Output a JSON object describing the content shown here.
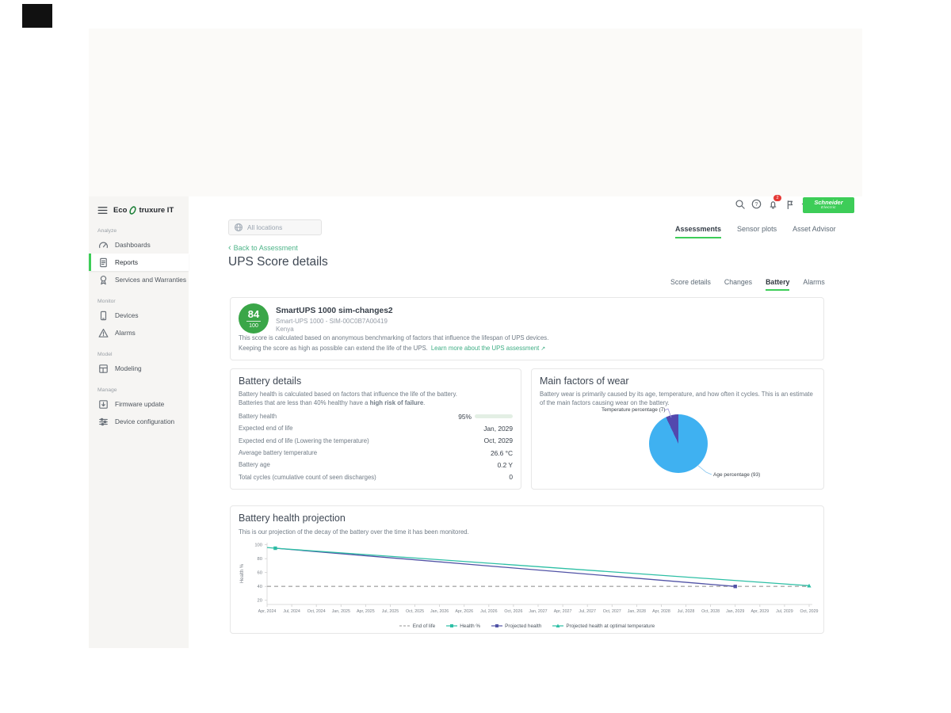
{
  "topbar": {
    "search_placeholder": "All locations",
    "notification_badge": "2",
    "icons": [
      {
        "name": "search-icon"
      },
      {
        "name": "help-icon"
      },
      {
        "name": "notifications-icon",
        "badge": true
      },
      {
        "name": "feedback-icon"
      },
      {
        "name": "settings-icon"
      }
    ],
    "brand": {
      "line1": "Schneider",
      "line2": "Electric",
      "color": "#3dcd58"
    }
  },
  "sidebar": {
    "logo_prefix": "Eco",
    "logo_suffix": "truxure IT",
    "sections": [
      {
        "label": "Analyze",
        "items": [
          {
            "label": "Dashboards",
            "icon": "dashboards-icon",
            "active": false
          },
          {
            "label": "Reports",
            "icon": "reports-icon",
            "active": true
          },
          {
            "label": "Services and Warranties",
            "icon": "services-warranties-icon",
            "active": false
          }
        ]
      },
      {
        "label": "Monitor",
        "items": [
          {
            "label": "Devices",
            "icon": "devices-icon",
            "active": false
          },
          {
            "label": "Alarms",
            "icon": "alarms-icon",
            "active": false
          }
        ]
      },
      {
        "label": "Model",
        "items": [
          {
            "label": "Modeling",
            "icon": "modeling-icon",
            "active": false
          }
        ]
      },
      {
        "label": "Manage",
        "items": [
          {
            "label": "Firmware update",
            "icon": "firmware-update-icon",
            "active": false
          },
          {
            "label": "Device configuration",
            "icon": "device-configuration-icon",
            "active": false
          }
        ]
      }
    ]
  },
  "primary_tabs": [
    {
      "label": "Assessments",
      "active": true
    },
    {
      "label": "Sensor plots",
      "active": false
    },
    {
      "label": "Asset Advisor",
      "active": false
    }
  ],
  "back_link_label": "Back to Assessment",
  "page_title": "UPS Score details",
  "secondary_tabs": [
    {
      "label": "Score details",
      "active": false
    },
    {
      "label": "Changes",
      "active": false
    },
    {
      "label": "Battery",
      "active": true
    },
    {
      "label": "Alarms",
      "active": false
    }
  ],
  "score_card": {
    "score": "84",
    "score_max": "100",
    "score_color": "#3aa648",
    "device_name": "SmartUPS 1000 sim-changes2",
    "device_model": "Smart-UPS 1000 - SIM-00C0B7A00419",
    "location": "Kenya",
    "description_line1": "This score is calculated based on anonymous benchmarking of factors that influence the lifespan of UPS devices.",
    "description_line2": "Keeping the score as high as possible can extend the life of the UPS.",
    "learn_more_label": "Learn more about the UPS assessment"
  },
  "battery_details": {
    "title": "Battery details",
    "description_line1": "Battery health is calculated based on factors that influence the life of the battery.",
    "description_line2_prefix": "Batteries that are less than 40% healthy have a ",
    "description_line2_bold": "high risk of failure",
    "description_line2_suffix": ".",
    "rows": [
      {
        "label": "Battery health",
        "value": "95%",
        "bar_percent": 95,
        "bar_color": "#1c7c3c"
      },
      {
        "label": "Expected end of life",
        "value": "Jan, 2029"
      },
      {
        "label": "Expected end of life (Lowering the temperature)",
        "value": "Oct, 2029"
      },
      {
        "label": "Average battery temperature",
        "value": "26.6 °C"
      },
      {
        "label": "Battery age",
        "value": "0.2 Y"
      },
      {
        "label": "Total cycles (cumulative count of seen discharges)",
        "value": "0"
      }
    ]
  },
  "wear_card": {
    "title": "Main factors of wear",
    "description": "Battery wear is primarily caused by its age, temperature, and how often it cycles. This is an estimate of the main factors causing wear on the battery.",
    "chart_data": {
      "type": "pie",
      "slices": [
        {
          "label": "Temperature percentage (7)",
          "value": 7,
          "color": "#5348ae"
        },
        {
          "label": "Age percentage (93)",
          "value": 93,
          "color": "#3fb1f1"
        }
      ]
    }
  },
  "projection_card": {
    "title": "Battery health projection",
    "description": "This is our projection of the decay of the battery over the time it has been monitored.",
    "chart_data": {
      "type": "line",
      "ylabel": "Health %",
      "yticks": [
        20,
        40,
        60,
        80,
        100
      ],
      "ylim": [
        14,
        103
      ],
      "x_unit": "months_since_Apr_2024",
      "xtick_step_months": 3,
      "xtick_labels": [
        "Apr, 2024",
        "Jul, 2024",
        "Oct, 2024",
        "Jan, 2025",
        "Apr, 2025",
        "Jul, 2025",
        "Oct, 2025",
        "Jan, 2026",
        "Apr, 2026",
        "Jul, 2026",
        "Oct, 2026",
        "Jan, 2027",
        "Apr, 2027",
        "Jul, 2027",
        "Oct, 2027",
        "Jan, 2028",
        "Apr, 2028",
        "Jul, 2028",
        "Oct, 2028",
        "Jan, 2029",
        "Apr, 2029",
        "Jul, 2029",
        "Oct, 2029"
      ],
      "series": [
        {
          "name": "End of life",
          "color": "#aaaaaa",
          "dash": true,
          "marker": "none",
          "points": [
            [
              0,
              40
            ],
            [
              66,
              40
            ]
          ],
          "markers": []
        },
        {
          "name": "Health %",
          "color": "#2dbfa5",
          "dash": false,
          "marker": "square",
          "points": [
            [
              0,
              96
            ],
            [
              1,
              95
            ]
          ],
          "markers": [
            [
              1,
              95
            ]
          ]
        },
        {
          "name": "Projected health",
          "color": "#5153a6",
          "dash": false,
          "marker": "square",
          "points": [
            [
              1,
              95
            ],
            [
              57,
              40
            ]
          ],
          "markers": [
            [
              57,
              40
            ]
          ]
        },
        {
          "name": "Projected health at optimal temperature",
          "color": "#2dbfa5",
          "dash": false,
          "marker": "triangle",
          "points": [
            [
              1,
              95
            ],
            [
              66,
              41
            ]
          ],
          "markers": [
            [
              66,
              41
            ]
          ]
        }
      ],
      "legend_position": "bottom"
    }
  }
}
